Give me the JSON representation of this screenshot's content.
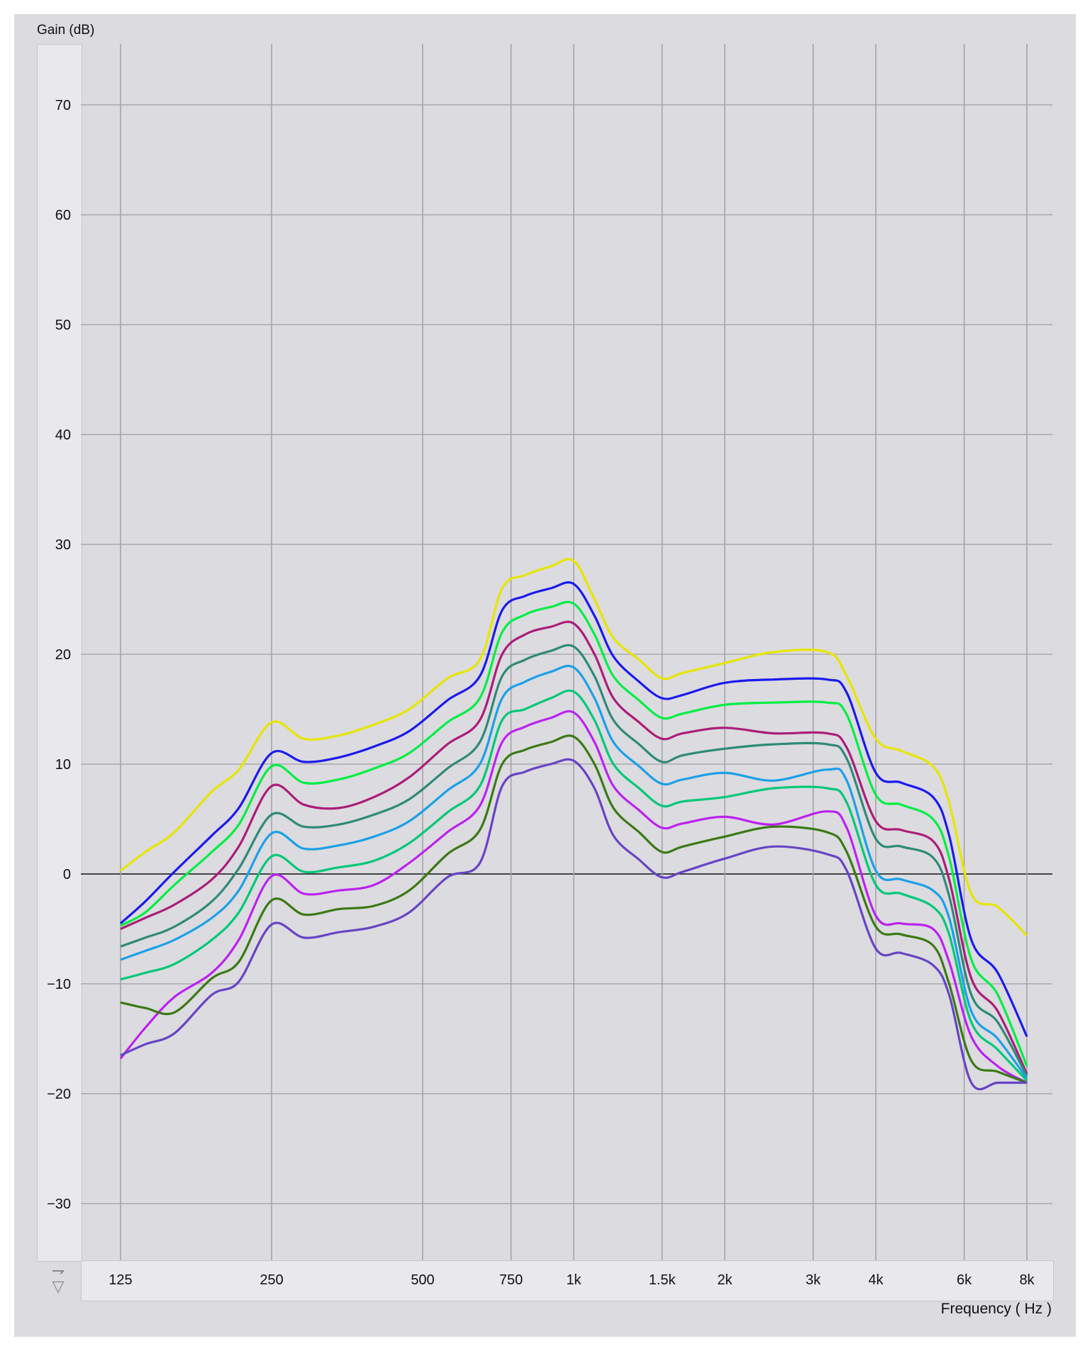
{
  "chart_data": {
    "type": "line",
    "ylabel": "Gain (dB)",
    "xlabel": "Frequency ( Hz )",
    "xscale": "log",
    "xlim": [
      125,
      8000
    ],
    "ylim": [
      -35,
      75
    ],
    "yticks": [
      -30,
      -20,
      -10,
      0,
      10,
      20,
      30,
      40,
      50,
      60,
      70
    ],
    "xticks": [
      125,
      250,
      500,
      750,
      1000,
      1500,
      2000,
      3000,
      4000,
      6000,
      8000
    ],
    "xtick_labels": [
      "125",
      "250",
      "500",
      "750",
      "1k",
      "1.5k",
      "2k",
      "3k",
      "4k",
      "6k",
      "8k"
    ],
    "grid": true,
    "x": [
      125,
      140,
      160,
      190,
      215,
      250,
      290,
      340,
      400,
      470,
      560,
      650,
      720,
      800,
      900,
      1000,
      1100,
      1200,
      1350,
      1500,
      1650,
      2000,
      2500,
      3200,
      3500,
      4000,
      4500,
      5200,
      5600,
      6200,
      7000,
      8000
    ],
    "series": [
      {
        "color": "#e6e600",
        "values": [
          0.3,
          2.0,
          3.8,
          7.5,
          9.5,
          13.8,
          12.3,
          12.6,
          13.6,
          15.0,
          17.8,
          19.5,
          26.0,
          27.2,
          28.0,
          28.5,
          25.0,
          21.5,
          19.5,
          17.8,
          18.3,
          19.2,
          20.2,
          20.2,
          18.0,
          12.3,
          11.2,
          9.8,
          6.5,
          -1.8,
          -3.0,
          -5.6
        ]
      },
      {
        "color": "#1a1aee",
        "values": [
          -4.5,
          -2.5,
          0.2,
          3.5,
          6.0,
          11.0,
          10.2,
          10.6,
          11.6,
          13.0,
          15.8,
          18.0,
          24.0,
          25.3,
          26.0,
          26.4,
          23.5,
          19.8,
          17.5,
          16.0,
          16.3,
          17.4,
          17.7,
          17.7,
          16.5,
          9.2,
          8.3,
          7.0,
          3.5,
          -6.0,
          -9.0,
          -14.8
        ]
      },
      {
        "color": "#00ee44",
        "values": [
          -4.7,
          -3.5,
          -1.0,
          2.0,
          4.5,
          9.8,
          8.3,
          8.6,
          9.6,
          11.0,
          13.8,
          16.0,
          22.0,
          23.6,
          24.3,
          24.6,
          21.8,
          18.0,
          15.8,
          14.2,
          14.6,
          15.4,
          15.6,
          15.6,
          14.5,
          7.2,
          6.3,
          5.0,
          1.5,
          -7.8,
          -11.0,
          -17.5
        ]
      },
      {
        "color": "#aa1e78",
        "values": [
          -5.0,
          -4.0,
          -2.8,
          -0.5,
          2.5,
          8.0,
          6.3,
          6.0,
          7.0,
          8.8,
          11.8,
          14.0,
          20.0,
          21.8,
          22.5,
          22.8,
          20.0,
          16.0,
          13.8,
          12.3,
          12.8,
          13.3,
          12.8,
          12.8,
          11.5,
          4.8,
          4.0,
          3.0,
          -0.5,
          -9.5,
          -12.5,
          -18.2
        ]
      },
      {
        "color": "#2e8a78",
        "values": [
          -6.6,
          -5.8,
          -4.8,
          -2.5,
          0.5,
          5.4,
          4.3,
          4.5,
          5.4,
          6.8,
          9.6,
          12.0,
          18.0,
          19.5,
          20.3,
          20.7,
          18.0,
          14.0,
          11.8,
          10.2,
          10.8,
          11.4,
          11.8,
          11.8,
          10.5,
          3.2,
          2.5,
          1.5,
          -2.0,
          -11.0,
          -13.5,
          -18.4
        ]
      },
      {
        "color": "#1aa0e8",
        "values": [
          -7.8,
          -7.0,
          -6.0,
          -4.0,
          -1.5,
          3.7,
          2.3,
          2.6,
          3.4,
          4.8,
          7.6,
          10.0,
          16.0,
          17.5,
          18.4,
          18.8,
          16.0,
          12.0,
          9.8,
          8.2,
          8.6,
          9.2,
          8.5,
          9.5,
          8.5,
          0.3,
          -0.5,
          -1.5,
          -4.0,
          -12.5,
          -15.0,
          -18.6
        ]
      },
      {
        "color": "#00c878",
        "values": [
          -9.6,
          -9.0,
          -8.2,
          -6.0,
          -3.5,
          1.6,
          0.2,
          0.6,
          1.2,
          2.8,
          5.6,
          8.0,
          14.0,
          15.0,
          16.0,
          16.6,
          14.0,
          10.0,
          7.8,
          6.2,
          6.6,
          7.0,
          7.8,
          7.8,
          6.5,
          -1.0,
          -1.8,
          -3.0,
          -5.5,
          -13.5,
          -16.0,
          -18.8
        ]
      },
      {
        "color": "#bb22ee",
        "values": [
          -16.8,
          -14.0,
          -11.2,
          -9.0,
          -6.0,
          -0.2,
          -1.8,
          -1.5,
          -1.0,
          1.0,
          3.8,
          6.2,
          12.0,
          13.4,
          14.2,
          14.7,
          12.0,
          8.0,
          5.8,
          4.2,
          4.6,
          5.2,
          4.5,
          5.7,
          4.2,
          -3.8,
          -4.5,
          -5.0,
          -8.0,
          -14.8,
          -17.5,
          -19.0
        ]
      },
      {
        "color": "#3a7a14",
        "values": [
          -11.7,
          -12.2,
          -12.6,
          -9.5,
          -8.0,
          -2.4,
          -3.7,
          -3.2,
          -2.9,
          -1.5,
          1.8,
          4.0,
          10.0,
          11.3,
          12.0,
          12.5,
          10.0,
          6.0,
          3.8,
          2.0,
          2.5,
          3.4,
          4.3,
          3.8,
          2.0,
          -4.8,
          -5.5,
          -6.5,
          -10.0,
          -17.0,
          -18.0,
          -19.0
        ]
      },
      {
        "color": "#6644c4",
        "values": [
          -16.5,
          -15.5,
          -14.5,
          -11.0,
          -9.8,
          -4.6,
          -5.8,
          -5.3,
          -4.8,
          -3.5,
          -0.3,
          1.0,
          8.0,
          9.3,
          10.0,
          10.3,
          7.8,
          3.5,
          1.3,
          -0.3,
          0.2,
          1.4,
          2.5,
          1.8,
          0.3,
          -6.8,
          -7.2,
          -8.3,
          -11.0,
          -19.0,
          -19.0,
          -19.0
        ]
      }
    ]
  },
  "ui": {
    "scroll_up_glyph": "⇁",
    "scroll_down_glyph": "▽"
  }
}
